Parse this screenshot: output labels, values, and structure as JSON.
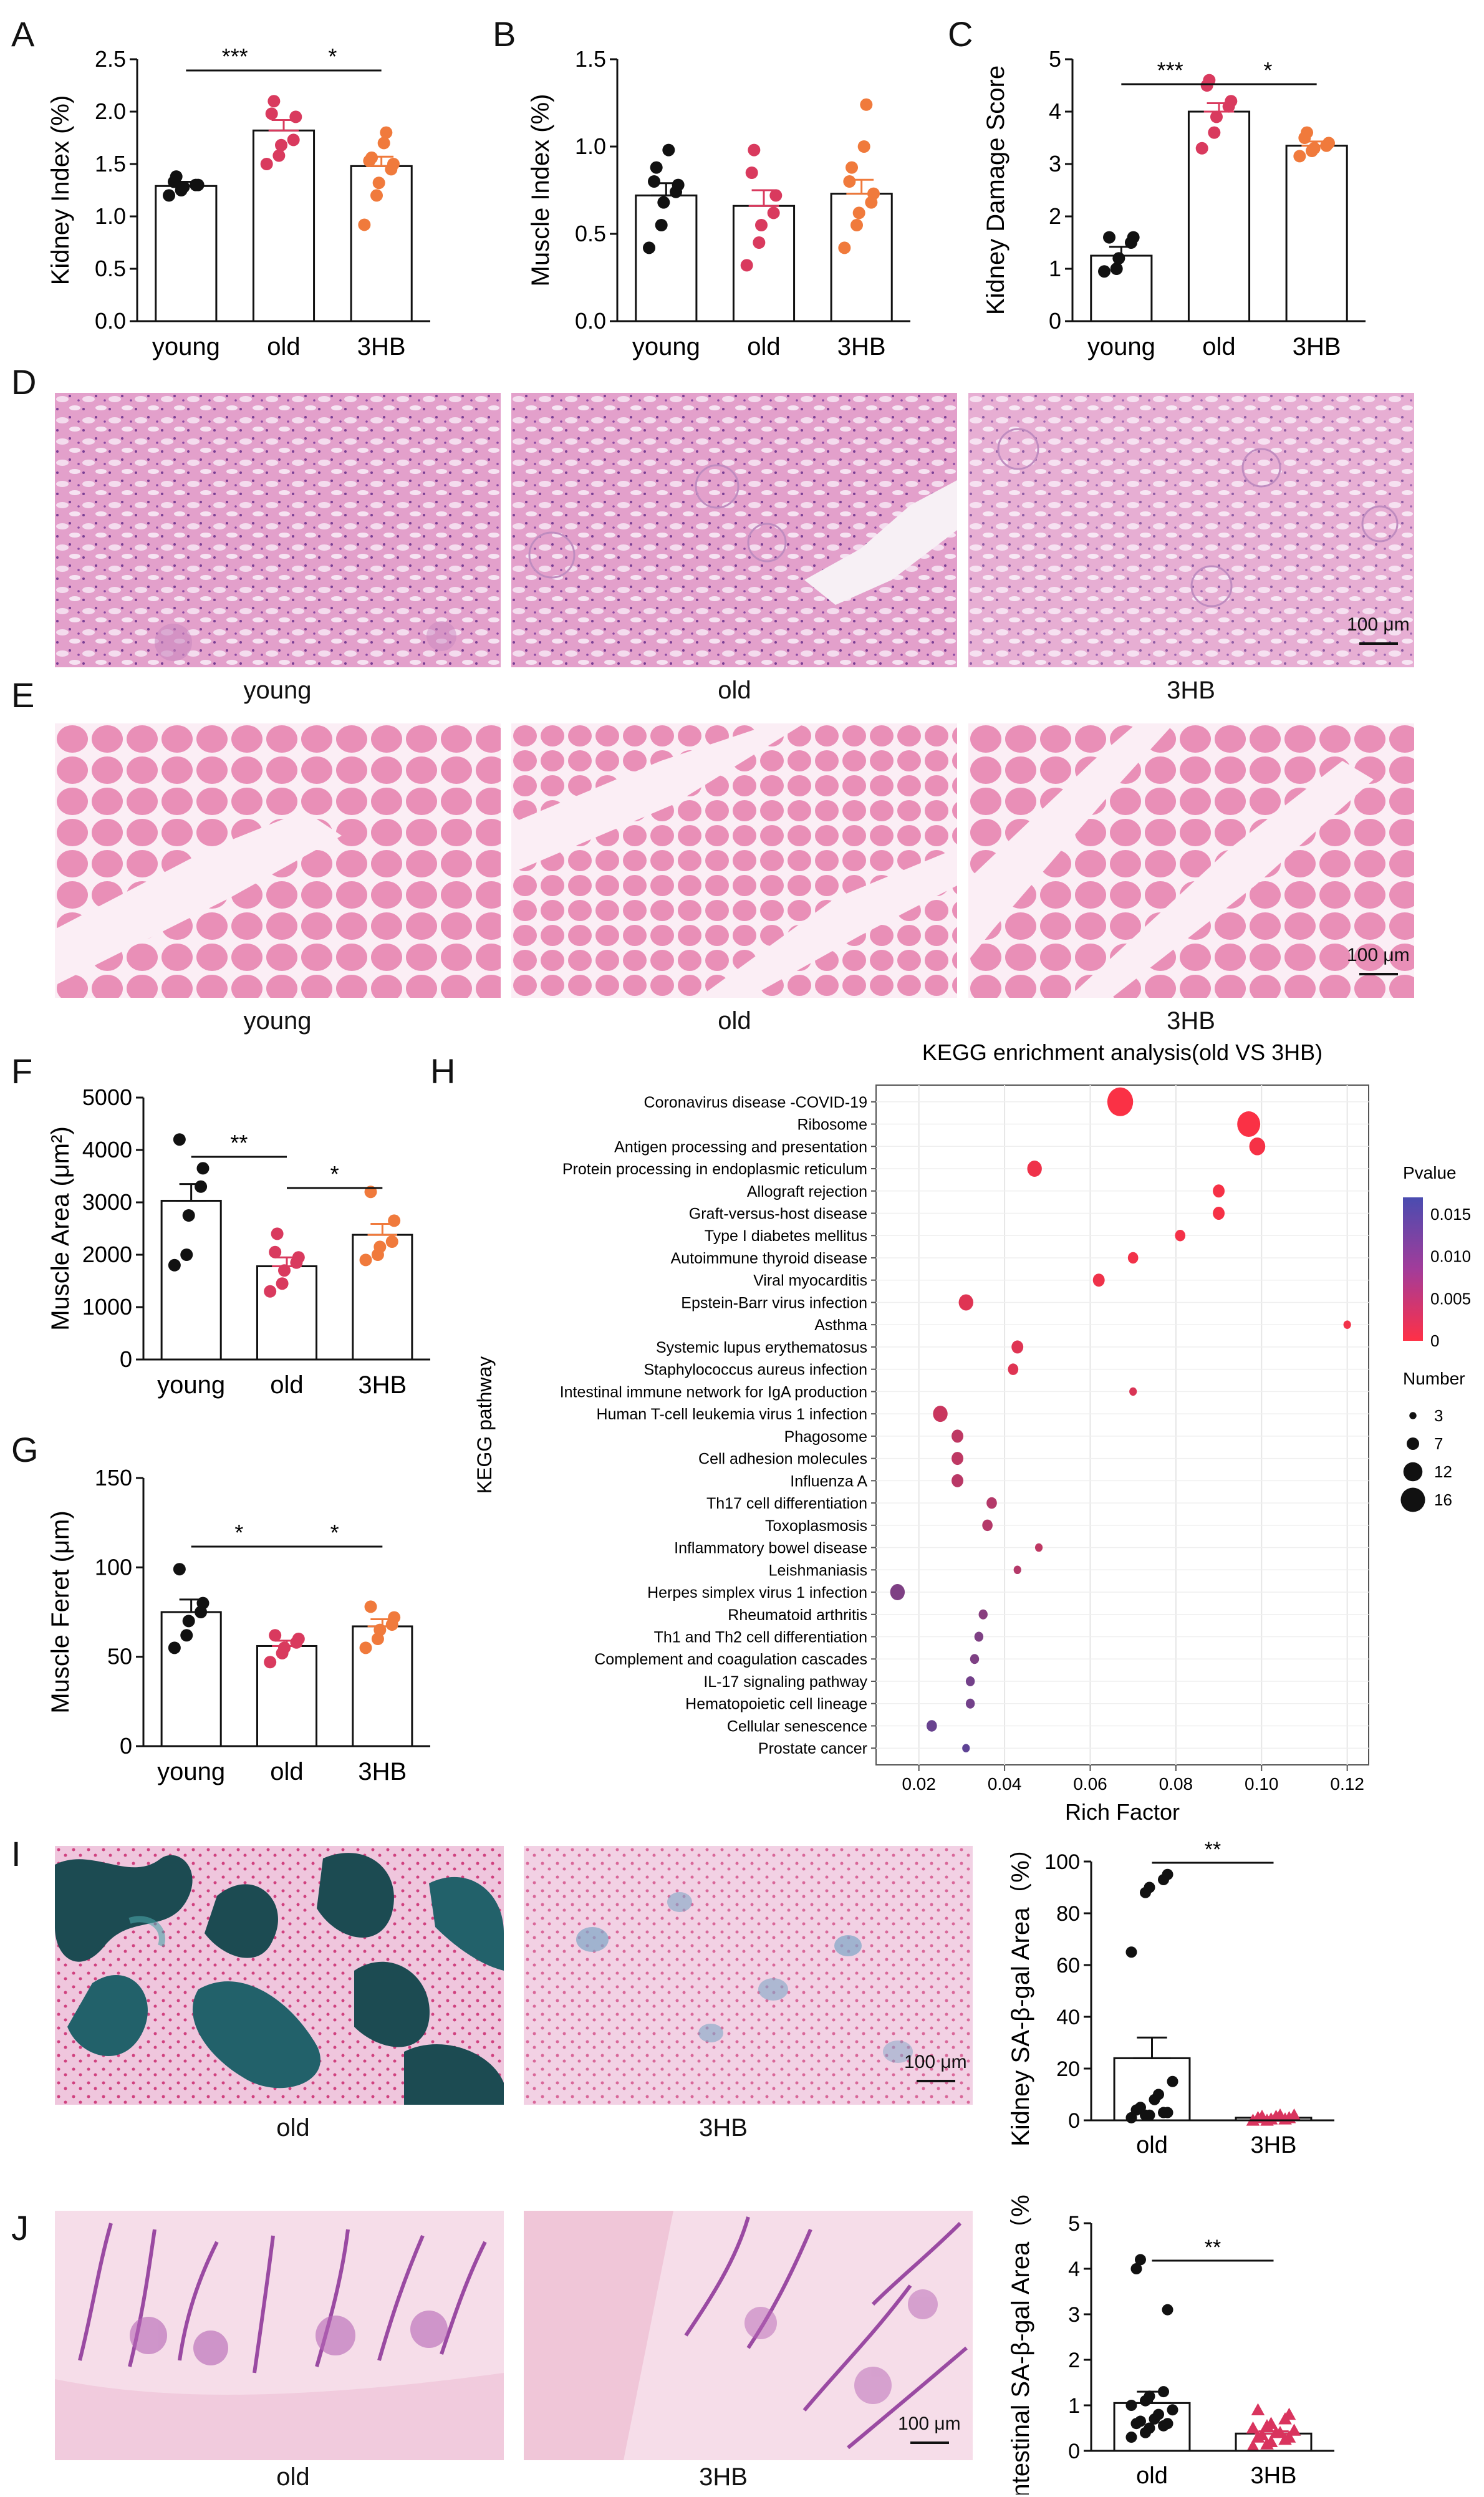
{
  "panels": {
    "A": "A",
    "B": "B",
    "C": "C",
    "D": "D",
    "E": "E",
    "F": "F",
    "G": "G",
    "H": "H",
    "I": "I",
    "J": "J"
  },
  "micrographs": {
    "D": {
      "captions": [
        "young",
        "old",
        "3HB"
      ],
      "scalebar": "100 μm"
    },
    "E": {
      "captions": [
        "young",
        "old",
        "3HB"
      ],
      "scalebar": "100 μm"
    },
    "I": {
      "captions": [
        "old",
        "3HB"
      ],
      "scalebar": "100 μm"
    },
    "J": {
      "captions": [
        "old",
        "3HB"
      ],
      "scalebar": "100 μm"
    }
  },
  "colors": {
    "young": "#111111",
    "old": "#d93a5e",
    "hb": "#f07a3c",
    "he_pink": "#e7a6cf",
    "muscle_pink": "#e98fb7",
    "sa_gal_blue": "#1f5f66",
    "sa_gal_points": "#d9345e"
  },
  "chart_data": [
    {
      "id": "A",
      "type": "bar",
      "categories": [
        "young",
        "old",
        "3HB"
      ],
      "values": [
        1.29,
        1.82,
        1.48
      ],
      "sem": [
        0.04,
        0.1,
        0.09
      ],
      "points": [
        [
          1.2,
          1.25,
          1.28,
          1.3,
          1.3,
          1.33,
          1.38
        ],
        [
          1.5,
          1.58,
          1.68,
          1.73,
          1.95,
          1.98,
          2.1
        ],
        [
          0.92,
          1.2,
          1.32,
          1.45,
          1.5,
          1.53,
          1.56,
          1.7,
          1.8
        ]
      ],
      "ylabel": "Kidney Index (%)",
      "ylim": [
        0,
        2.5
      ],
      "yticks": [
        "0.0",
        "0.5",
        "1.0",
        "1.5",
        "2.0",
        "2.5"
      ],
      "significance": [
        {
          "from": 0,
          "to": 1,
          "label": "***"
        },
        {
          "from": 1,
          "to": 2,
          "label": "*"
        }
      ]
    },
    {
      "id": "B",
      "type": "bar",
      "categories": [
        "young",
        "old",
        "3HB"
      ],
      "values": [
        0.72,
        0.66,
        0.73
      ],
      "sem": [
        0.07,
        0.09,
        0.08
      ],
      "points": [
        [
          0.42,
          0.55,
          0.68,
          0.74,
          0.78,
          0.8,
          0.88,
          0.98
        ],
        [
          0.32,
          0.45,
          0.55,
          0.62,
          0.72,
          0.85,
          0.98
        ],
        [
          0.42,
          0.55,
          0.62,
          0.68,
          0.73,
          0.8,
          0.88,
          1.0,
          1.24
        ]
      ],
      "ylabel": "Muscle Index (%)",
      "ylim": [
        0,
        1.5
      ],
      "yticks": [
        "0.0",
        "0.5",
        "1.0",
        "1.5"
      ],
      "significance": []
    },
    {
      "id": "C",
      "type": "bar",
      "categories": [
        "young",
        "old",
        "3HB"
      ],
      "values": [
        1.25,
        4.0,
        3.35
      ],
      "sem": [
        0.17,
        0.16,
        0.08
      ],
      "points": [
        [
          0.95,
          1.0,
          1.2,
          1.5,
          1.6,
          1.6
        ],
        [
          3.3,
          3.6,
          3.9,
          4.1,
          4.2,
          4.5,
          4.6
        ],
        [
          3.15,
          3.25,
          3.3,
          3.35,
          3.4,
          3.5,
          3.6
        ]
      ],
      "ylabel": "Kidney Damage Score",
      "ylim": [
        0,
        5
      ],
      "yticks": [
        "0",
        "1",
        "2",
        "3",
        "4",
        "5"
      ],
      "significance": [
        {
          "from": 0,
          "to": 1,
          "label": "***"
        },
        {
          "from": 1,
          "to": 2,
          "label": "*"
        }
      ]
    },
    {
      "id": "F",
      "type": "bar",
      "categories": [
        "young",
        "old",
        "3HB"
      ],
      "values": [
        3030,
        1780,
        2380
      ],
      "sem": [
        320,
        170,
        210
      ],
      "points": [
        [
          1800,
          2000,
          2750,
          3300,
          3650,
          4200
        ],
        [
          1300,
          1450,
          1700,
          1850,
          1950,
          2050,
          2400
        ],
        [
          1900,
          2000,
          2150,
          2250,
          2650,
          3200
        ]
      ],
      "ylabel": "Muscle Area (μm²)",
      "ylim": [
        0,
        5000
      ],
      "yticks": [
        "0",
        "1000",
        "2000",
        "3000",
        "4000",
        "5000"
      ],
      "significance": [
        {
          "from": 0,
          "to": 1,
          "label": "**"
        },
        {
          "from": 1,
          "to": 2,
          "label": "*"
        }
      ]
    },
    {
      "id": "G",
      "type": "bar",
      "categories": [
        "young",
        "old",
        "3HB"
      ],
      "values": [
        75,
        56,
        67
      ],
      "sem": [
        7,
        3,
        4
      ],
      "points": [
        [
          55,
          62,
          70,
          75,
          80,
          99
        ],
        [
          47,
          52,
          55,
          58,
          60,
          62
        ],
        [
          55,
          60,
          65,
          68,
          72,
          78
        ]
      ],
      "ylabel": "Muscle Feret (μm)",
      "ylim": [
        0,
        150
      ],
      "yticks": [
        "0",
        "50",
        "100",
        "150"
      ],
      "significance": [
        {
          "from": 0,
          "to": 1,
          "label": "*"
        },
        {
          "from": 1,
          "to": 2,
          "label": "*"
        }
      ]
    },
    {
      "id": "H",
      "type": "scatter",
      "title": "KEGG enrichment analysis(old VS 3HB)",
      "xlabel": "Rich Factor",
      "ylabel": "KEGG pathway",
      "xlim": [
        0.01,
        0.125
      ],
      "xticks": [
        0.02,
        0.04,
        0.06,
        0.08,
        0.1,
        0.12
      ],
      "xtick_labels": [
        "0.02",
        "0.04",
        "0.06",
        "0.08",
        "0.10",
        "0.12"
      ],
      "pathways": [
        {
          "name": "Coronavirus disease -COVID-19",
          "rich": 0.067,
          "number": 16,
          "pvalue": 0.0005
        },
        {
          "name": "Ribosome",
          "rich": 0.097,
          "number": 14,
          "pvalue": 0.0005
        },
        {
          "name": "Antigen processing and presentation",
          "rich": 0.099,
          "number": 9,
          "pvalue": 0.0008
        },
        {
          "name": "Protein processing in endoplasmic reticulum",
          "rich": 0.047,
          "number": 8,
          "pvalue": 0.0015
        },
        {
          "name": "Allograft rejection",
          "rich": 0.09,
          "number": 6,
          "pvalue": 0.0008
        },
        {
          "name": "Graft-versus-host disease",
          "rich": 0.09,
          "number": 6,
          "pvalue": 0.0008
        },
        {
          "name": "Type I diabetes mellitus",
          "rich": 0.081,
          "number": 5,
          "pvalue": 0.001
        },
        {
          "name": "Autoimmune thyroid disease",
          "rich": 0.07,
          "number": 5,
          "pvalue": 0.0012
        },
        {
          "name": "Viral myocarditis",
          "rich": 0.062,
          "number": 6,
          "pvalue": 0.0015
        },
        {
          "name": "Epstein-Barr virus infection",
          "rich": 0.031,
          "number": 8,
          "pvalue": 0.003
        },
        {
          "name": "Asthma",
          "rich": 0.12,
          "number": 3,
          "pvalue": 0.0012
        },
        {
          "name": "Systemic lupus erythematosus",
          "rich": 0.043,
          "number": 6,
          "pvalue": 0.003
        },
        {
          "name": "Staphylococcus aureus infection",
          "rich": 0.042,
          "number": 5,
          "pvalue": 0.003
        },
        {
          "name": "Intestinal immune network for IgA production",
          "rich": 0.07,
          "number": 3,
          "pvalue": 0.0035
        },
        {
          "name": "Human T-cell leukemia virus 1 infection",
          "rich": 0.025,
          "number": 8,
          "pvalue": 0.005
        },
        {
          "name": "Phagosome",
          "rich": 0.029,
          "number": 6,
          "pvalue": 0.006
        },
        {
          "name": "Cell adhesion molecules",
          "rich": 0.029,
          "number": 6,
          "pvalue": 0.006
        },
        {
          "name": "Influenza A",
          "rich": 0.029,
          "number": 6,
          "pvalue": 0.0065
        },
        {
          "name": "Th17 cell differentiation",
          "rich": 0.037,
          "number": 5,
          "pvalue": 0.007
        },
        {
          "name": "Toxoplasmosis",
          "rich": 0.036,
          "number": 5,
          "pvalue": 0.007
        },
        {
          "name": "Inflammatory bowel disease",
          "rich": 0.048,
          "number": 3,
          "pvalue": 0.006
        },
        {
          "name": "Leishmaniasis",
          "rich": 0.043,
          "number": 3,
          "pvalue": 0.007
        },
        {
          "name": "Herpes simplex virus 1 infection",
          "rich": 0.015,
          "number": 8,
          "pvalue": 0.012
        },
        {
          "name": "Rheumatoid arthritis",
          "rich": 0.035,
          "number": 4,
          "pvalue": 0.011
        },
        {
          "name": "Th1 and Th2 cell differentiation",
          "rich": 0.034,
          "number": 4,
          "pvalue": 0.012
        },
        {
          "name": "Complement and coagulation cascades",
          "rich": 0.033,
          "number": 4,
          "pvalue": 0.012
        },
        {
          "name": "IL-17 signaling pathway",
          "rich": 0.032,
          "number": 4,
          "pvalue": 0.013
        },
        {
          "name": "Hematopoietic cell lineage",
          "rich": 0.032,
          "number": 4,
          "pvalue": 0.013
        },
        {
          "name": "Cellular senescence",
          "rich": 0.023,
          "number": 5,
          "pvalue": 0.014
        },
        {
          "name": "Prostate cancer",
          "rich": 0.031,
          "number": 3,
          "pvalue": 0.015
        }
      ],
      "color_legend": {
        "title": "Pvalue",
        "ticks": [
          "0.015",
          "0.010",
          "0.005",
          "0"
        ],
        "min": 0,
        "max": 0.017
      },
      "size_legend": {
        "title": "Number",
        "values": [
          3,
          7,
          12,
          16
        ]
      }
    },
    {
      "id": "I",
      "type": "bar",
      "categories": [
        "old",
        "3HB"
      ],
      "values": [
        24,
        1
      ],
      "sem": [
        8,
        0.3
      ],
      "points": [
        [
          1,
          2,
          2,
          3,
          3,
          4,
          5,
          8,
          10,
          15,
          65,
          88,
          90,
          93,
          95
        ],
        [
          0,
          0,
          0.5,
          0.5,
          1,
          1,
          1.5,
          1.5,
          2,
          2
        ]
      ],
      "ylabel": "Kidney SA-β-gal Area（%）",
      "ylim": [
        0,
        100
      ],
      "yticks": [
        "0",
        "20",
        "40",
        "60",
        "80",
        "100"
      ],
      "significance": [
        {
          "from": 0,
          "to": 1,
          "label": "**"
        }
      ]
    },
    {
      "id": "J",
      "type": "bar",
      "categories": [
        "old",
        "3HB"
      ],
      "values": [
        1.05,
        0.38
      ],
      "sem": [
        0.25,
        0.05
      ],
      "points": [
        [
          0.3,
          0.4,
          0.5,
          0.55,
          0.6,
          0.6,
          0.65,
          0.7,
          0.8,
          0.9,
          1.0,
          1.1,
          1.2,
          1.3,
          3.1,
          4.0,
          4.2
        ],
        [
          0.1,
          0.15,
          0.2,
          0.25,
          0.3,
          0.3,
          0.35,
          0.4,
          0.4,
          0.45,
          0.5,
          0.55,
          0.6,
          0.7,
          0.8,
          0.9
        ]
      ],
      "ylabel": "Intestinal SA-β-gal Area（%）",
      "ylim": [
        0,
        5
      ],
      "yticks": [
        "0",
        "1",
        "2",
        "3",
        "4",
        "5"
      ],
      "significance": [
        {
          "from": 0,
          "to": 1,
          "label": "**"
        }
      ]
    }
  ]
}
